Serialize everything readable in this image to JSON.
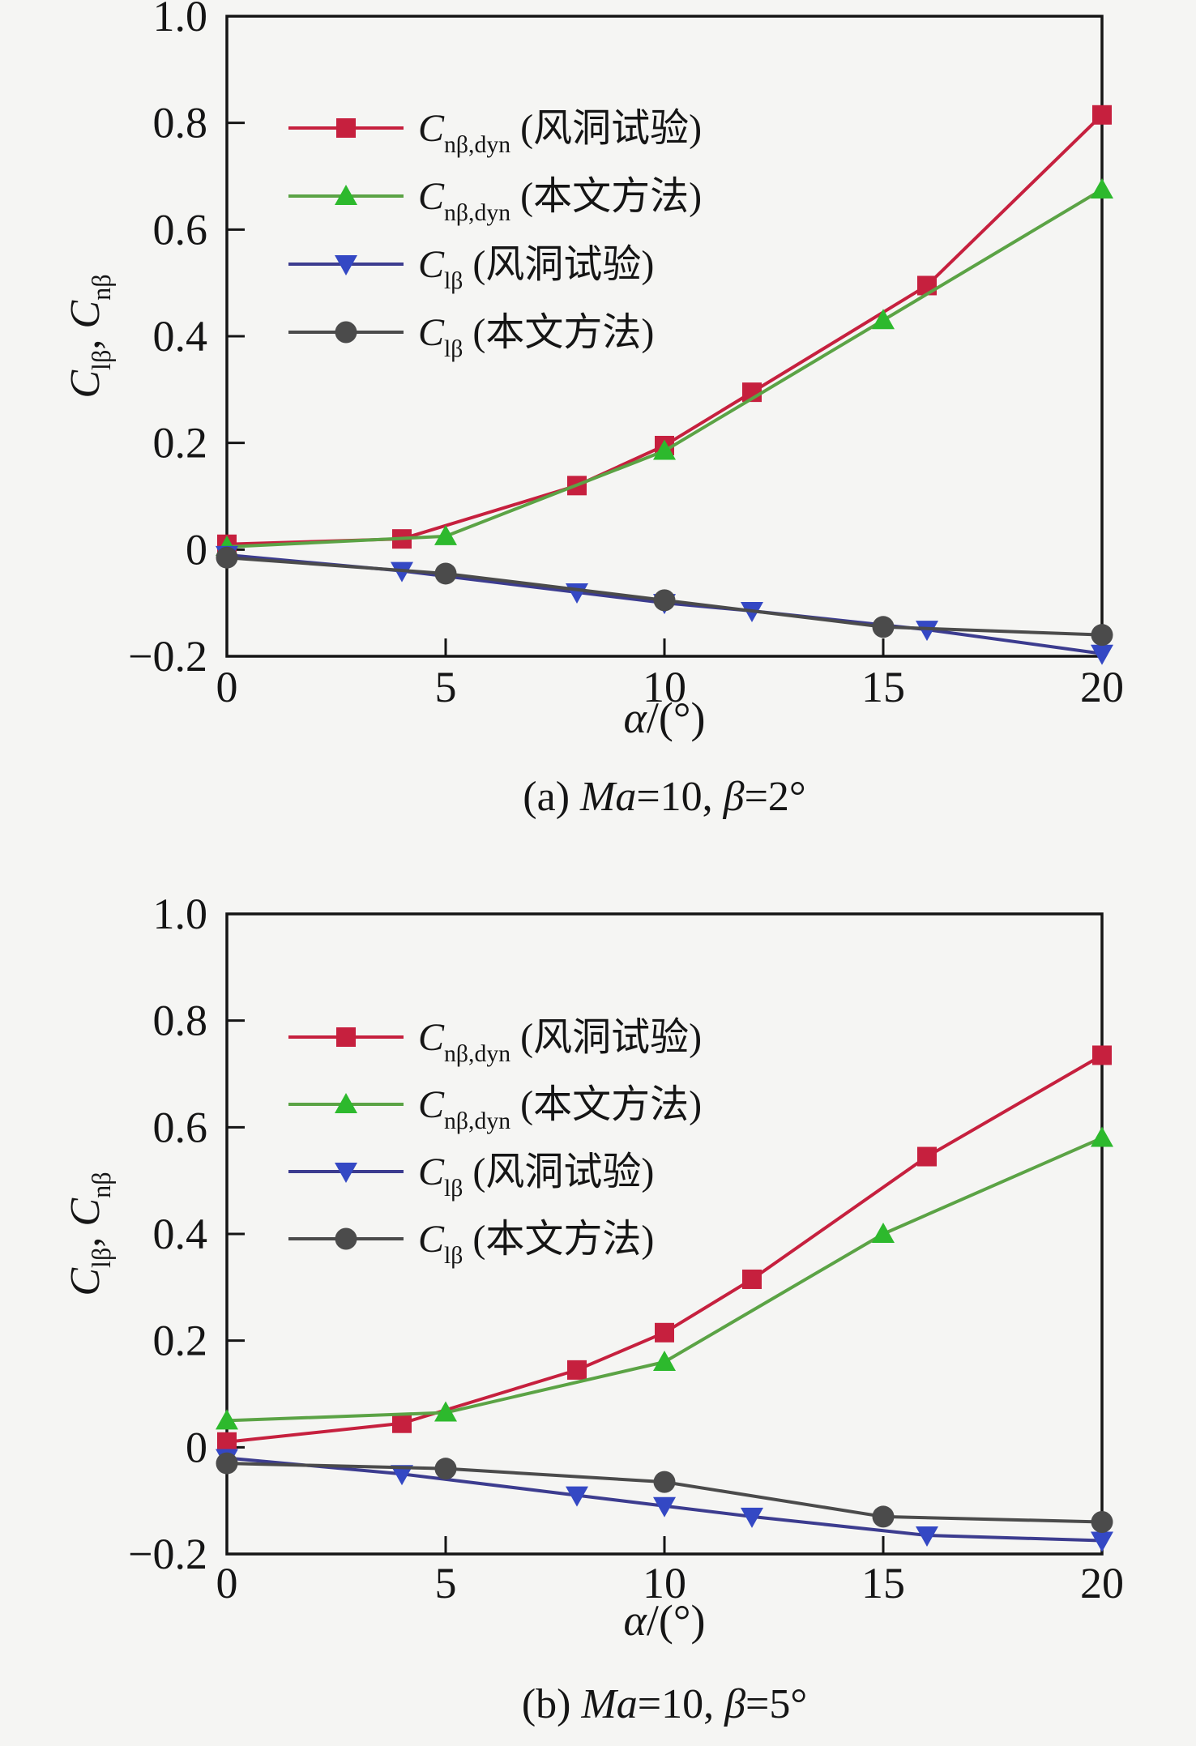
{
  "figure": {
    "background": "#f5f5f3",
    "axis_color": "#151515",
    "text_color": "#151515"
  },
  "chart_data": [
    {
      "id": "a",
      "type": "line",
      "caption": "(a) Ma=10, β=2°",
      "caption_parts": [
        [
          "n",
          "(a) "
        ],
        [
          "i",
          "Ma"
        ],
        [
          "n",
          "=10, "
        ],
        [
          "i",
          "β"
        ],
        [
          "n",
          "=2°"
        ]
      ],
      "xlabel": "α/(°)",
      "xlabel_parts": [
        [
          "i",
          "α"
        ],
        [
          "n",
          "/(°)"
        ]
      ],
      "ylabel": "Clβ, Cnβ",
      "ylabel_parts": [
        [
          "i",
          "C"
        ],
        [
          "s",
          "lβ"
        ],
        [
          "n",
          ", "
        ],
        [
          "i",
          "C"
        ],
        [
          "s",
          "nβ"
        ]
      ],
      "xlim": [
        0,
        20
      ],
      "ylim": [
        -0.2,
        1.0
      ],
      "grid": false,
      "legend_position": "upper-left-inside",
      "xticks": [
        {
          "v": 0,
          "t": "0"
        },
        {
          "v": 5,
          "t": "5"
        },
        {
          "v": 10,
          "t": "10"
        },
        {
          "v": 15,
          "t": "15"
        },
        {
          "v": 20,
          "t": "20"
        }
      ],
      "yticks": [
        {
          "v": -0.2,
          "t": "−0.2"
        },
        {
          "v": 0,
          "t": "0"
        },
        {
          "v": 0.2,
          "t": "0.2"
        },
        {
          "v": 0.4,
          "t": "0.4"
        },
        {
          "v": 0.6,
          "t": "0.6"
        },
        {
          "v": 0.8,
          "t": "0.8"
        },
        {
          "v": 1,
          "t": "1.0"
        }
      ],
      "series": [
        {
          "name": "Cnβ,dyn (风洞试验)",
          "label_parts": [
            [
              "i",
              "C"
            ],
            [
              "s",
              "nβ,dyn"
            ],
            [
              "n",
              " (风洞试验)"
            ]
          ],
          "marker": "square",
          "line_color": "#c6203e",
          "marker_color": "#c6203e",
          "x": [
            0,
            4,
            8,
            10,
            12,
            16,
            20
          ],
          "y": [
            0.01,
            0.02,
            0.12,
            0.195,
            0.295,
            0.495,
            0.815
          ]
        },
        {
          "name": "Cnβ,dyn (本文方法)",
          "label_parts": [
            [
              "i",
              "C"
            ],
            [
              "s",
              "nβ,dyn"
            ],
            [
              "n",
              " (本文方法)"
            ]
          ],
          "marker": "triangle-up",
          "line_color": "#5ba345",
          "marker_color": "#2db92d",
          "x": [
            0,
            5,
            10,
            15,
            20
          ],
          "y": [
            0.005,
            0.025,
            0.185,
            0.43,
            0.675
          ]
        },
        {
          "name": "Clβ (风洞试验)",
          "label_parts": [
            [
              "i",
              "C"
            ],
            [
              "s",
              "lβ"
            ],
            [
              "n",
              " (风洞试验)"
            ]
          ],
          "marker": "triangle-down",
          "line_color": "#3c3c8f",
          "marker_color": "#3448c4",
          "x": [
            0,
            4,
            8,
            10,
            12,
            16,
            20
          ],
          "y": [
            -0.01,
            -0.04,
            -0.08,
            -0.1,
            -0.115,
            -0.15,
            -0.195
          ]
        },
        {
          "name": "Clβ (本文方法)",
          "label_parts": [
            [
              "i",
              "C"
            ],
            [
              "s",
              "lβ"
            ],
            [
              "n",
              " (本文方法)"
            ]
          ],
          "marker": "circle",
          "line_color": "#4b4b4b",
          "marker_color": "#4b4b4b",
          "x": [
            0,
            5,
            10,
            15,
            20
          ],
          "y": [
            -0.015,
            -0.045,
            -0.095,
            -0.145,
            -0.16
          ]
        }
      ]
    },
    {
      "id": "b",
      "type": "line",
      "caption": "(b) Ma=10, β=5°",
      "caption_parts": [
        [
          "n",
          "(b) "
        ],
        [
          "i",
          "Ma"
        ],
        [
          "n",
          "=10, "
        ],
        [
          "i",
          "β"
        ],
        [
          "n",
          "=5°"
        ]
      ],
      "xlabel": "α/(°)",
      "xlabel_parts": [
        [
          "i",
          "α"
        ],
        [
          "n",
          "/(°)"
        ]
      ],
      "ylabel": "Clβ, Cnβ",
      "ylabel_parts": [
        [
          "i",
          "C"
        ],
        [
          "s",
          "lβ"
        ],
        [
          "n",
          ", "
        ],
        [
          "i",
          "C"
        ],
        [
          "s",
          "nβ"
        ]
      ],
      "xlim": [
        0,
        20
      ],
      "ylim": [
        -0.2,
        1.0
      ],
      "grid": false,
      "legend_position": "upper-left-inside",
      "xticks": [
        {
          "v": 0,
          "t": "0"
        },
        {
          "v": 5,
          "t": "5"
        },
        {
          "v": 10,
          "t": "10"
        },
        {
          "v": 15,
          "t": "15"
        },
        {
          "v": 20,
          "t": "20"
        }
      ],
      "yticks": [
        {
          "v": -0.2,
          "t": "−0.2"
        },
        {
          "v": 0,
          "t": "0"
        },
        {
          "v": 0.2,
          "t": "0.2"
        },
        {
          "v": 0.4,
          "t": "0.4"
        },
        {
          "v": 0.6,
          "t": "0.6"
        },
        {
          "v": 0.8,
          "t": "0.8"
        },
        {
          "v": 1,
          "t": "1.0"
        }
      ],
      "series": [
        {
          "name": "Cnβ,dyn (风洞试验)",
          "label_parts": [
            [
              "i",
              "C"
            ],
            [
              "s",
              "nβ,dyn"
            ],
            [
              "n",
              " (风洞试验)"
            ]
          ],
          "marker": "square",
          "line_color": "#c6203e",
          "marker_color": "#c6203e",
          "x": [
            0,
            4,
            8,
            10,
            12,
            16,
            20
          ],
          "y": [
            0.01,
            0.045,
            0.145,
            0.215,
            0.315,
            0.545,
            0.735
          ]
        },
        {
          "name": "Cnβ,dyn (本文方法)",
          "label_parts": [
            [
              "i",
              "C"
            ],
            [
              "s",
              "nβ,dyn"
            ],
            [
              "n",
              " (本文方法)"
            ]
          ],
          "marker": "triangle-up",
          "line_color": "#5ba345",
          "marker_color": "#2db92d",
          "x": [
            0,
            5,
            10,
            15,
            20
          ],
          "y": [
            0.05,
            0.065,
            0.16,
            0.4,
            0.58
          ]
        },
        {
          "name": "Clβ (风洞试验)",
          "label_parts": [
            [
              "i",
              "C"
            ],
            [
              "s",
              "lβ"
            ],
            [
              "n",
              " (风洞试验)"
            ]
          ],
          "marker": "triangle-down",
          "line_color": "#3c3c8f",
          "marker_color": "#3448c4",
          "x": [
            0,
            4,
            8,
            10,
            12,
            16,
            20
          ],
          "y": [
            -0.02,
            -0.05,
            -0.09,
            -0.11,
            -0.13,
            -0.165,
            -0.175
          ]
        },
        {
          "name": "Clβ (本文方法)",
          "label_parts": [
            [
              "i",
              "C"
            ],
            [
              "s",
              "lβ"
            ],
            [
              "n",
              " (本文方法)"
            ]
          ],
          "marker": "circle",
          "line_color": "#4b4b4b",
          "marker_color": "#4b4b4b",
          "x": [
            0,
            5,
            10,
            15,
            20
          ],
          "y": [
            -0.03,
            -0.04,
            -0.065,
            -0.13,
            -0.14
          ]
        }
      ]
    }
  ]
}
